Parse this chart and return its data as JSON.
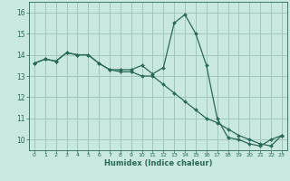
{
  "xlabel": "Humidex (Indice chaleur)",
  "background_color": "#c8e8e0",
  "grid_color": "#a0c8c0",
  "line_color": "#2a6858",
  "xlim": [
    -0.5,
    23.5
  ],
  "ylim": [
    9.5,
    16.5
  ],
  "xticks": [
    0,
    1,
    2,
    3,
    4,
    5,
    6,
    7,
    8,
    9,
    10,
    11,
    12,
    13,
    14,
    15,
    16,
    17,
    18,
    19,
    20,
    21,
    22,
    23
  ],
  "yticks": [
    10,
    11,
    12,
    13,
    14,
    15,
    16
  ],
  "line1_x": [
    0,
    1,
    2,
    3,
    4,
    5,
    6,
    7,
    8,
    9,
    10,
    11,
    12,
    13,
    14,
    15,
    16,
    17,
    18,
    19,
    20,
    21,
    22,
    23
  ],
  "line1_y": [
    13.6,
    13.8,
    13.7,
    14.1,
    14.0,
    14.0,
    13.6,
    13.3,
    13.3,
    13.3,
    13.5,
    13.1,
    13.4,
    15.5,
    15.9,
    15.0,
    13.5,
    11.0,
    10.1,
    10.0,
    9.8,
    9.7,
    10.0,
    10.2
  ],
  "line2_x": [
    0,
    1,
    2,
    3,
    4,
    5,
    6,
    7,
    8,
    9,
    10,
    11,
    12,
    13,
    14,
    15,
    16,
    17,
    18,
    19,
    20,
    21,
    22,
    23
  ],
  "line2_y": [
    13.6,
    13.8,
    13.7,
    14.1,
    14.0,
    14.0,
    13.6,
    13.3,
    13.2,
    13.2,
    13.0,
    13.0,
    12.6,
    12.2,
    11.8,
    11.4,
    11.0,
    10.8,
    10.5,
    10.2,
    10.0,
    9.8,
    9.7,
    10.2
  ]
}
